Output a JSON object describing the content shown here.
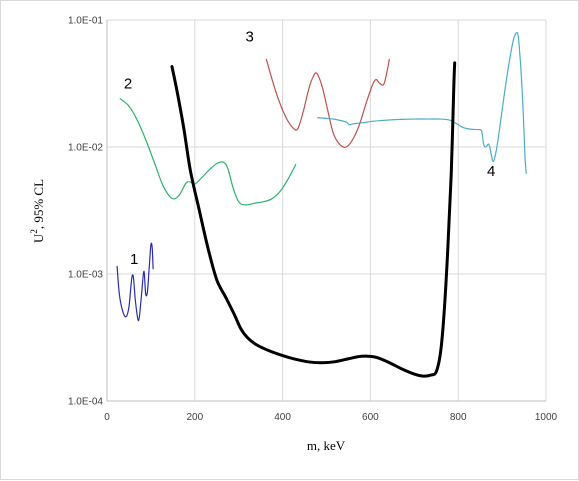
{
  "chart_data": {
    "type": "line",
    "title": "",
    "xlabel": "m, keV",
    "ylabel_main": "U",
    "ylabel_sup": "2",
    "ylabel_rest": ", 95% CL",
    "xlim": [
      0,
      1000
    ],
    "ylim": [
      0.0001,
      0.1
    ],
    "yscale": "log",
    "grid": true,
    "legend": "none",
    "x_ticks": [
      {
        "value": 0,
        "label": "0"
      },
      {
        "value": 200,
        "label": "200"
      },
      {
        "value": 400,
        "label": "400"
      },
      {
        "value": 600,
        "label": "600"
      },
      {
        "value": 800,
        "label": "800"
      },
      {
        "value": 1000,
        "label": "1000"
      }
    ],
    "y_ticks": [
      {
        "value": 0.0001,
        "label": "1.0E-04"
      },
      {
        "value": 0.001,
        "label": "1.0E-03"
      },
      {
        "value": 0.01,
        "label": "1.0E-02"
      },
      {
        "value": 0.1,
        "label": "1.0E-01"
      }
    ],
    "series": [
      {
        "label": "1",
        "color": "#2b2bb0",
        "width": 1.2,
        "label_at": [
          62,
          0.0012
        ],
        "points": [
          [
            23,
            0.00115
          ],
          [
            28,
            0.0007
          ],
          [
            35,
            0.00052
          ],
          [
            43,
            0.00046
          ],
          [
            50,
            0.00055
          ],
          [
            56,
            0.0009
          ],
          [
            60,
            0.00095
          ],
          [
            65,
            0.0006
          ],
          [
            72,
            0.00043
          ],
          [
            78,
            0.00065
          ],
          [
            84,
            0.00105
          ],
          [
            88,
            0.0007
          ],
          [
            92,
            0.00072
          ],
          [
            96,
            0.0011
          ],
          [
            100,
            0.0017
          ],
          [
            103,
            0.0016
          ],
          [
            105,
            0.0011
          ]
        ]
      },
      {
        "label": "2",
        "color": "#2db36b",
        "width": 1.2,
        "label_at": [
          48,
          0.029
        ],
        "points": [
          [
            30,
            0.024
          ],
          [
            50,
            0.021
          ],
          [
            70,
            0.016
          ],
          [
            90,
            0.011
          ],
          [
            110,
            0.0072
          ],
          [
            125,
            0.0052
          ],
          [
            140,
            0.0042
          ],
          [
            152,
            0.0039
          ],
          [
            165,
            0.0042
          ],
          [
            180,
            0.0052
          ],
          [
            190,
            0.0053
          ],
          [
            200,
            0.0051
          ],
          [
            215,
            0.0057
          ],
          [
            235,
            0.0067
          ],
          [
            250,
            0.0074
          ],
          [
            265,
            0.0076
          ],
          [
            275,
            0.0068
          ],
          [
            287,
            0.0048
          ],
          [
            300,
            0.0037
          ],
          [
            315,
            0.0035
          ],
          [
            335,
            0.0036
          ],
          [
            355,
            0.0037
          ],
          [
            375,
            0.0039
          ],
          [
            395,
            0.0045
          ],
          [
            415,
            0.0058
          ],
          [
            430,
            0.0073
          ]
        ]
      },
      {
        "label": "3",
        "color": "#c0504d",
        "width": 1.2,
        "label_at": [
          325,
          0.068
        ],
        "points": [
          [
            363,
            0.049
          ],
          [
            375,
            0.035
          ],
          [
            390,
            0.024
          ],
          [
            408,
            0.017
          ],
          [
            425,
            0.014
          ],
          [
            435,
            0.014
          ],
          [
            447,
            0.019
          ],
          [
            460,
            0.029
          ],
          [
            470,
            0.036
          ],
          [
            478,
            0.038
          ],
          [
            490,
            0.03
          ],
          [
            502,
            0.02
          ],
          [
            515,
            0.013
          ],
          [
            530,
            0.0105
          ],
          [
            545,
            0.01
          ],
          [
            560,
            0.0115
          ],
          [
            575,
            0.015
          ],
          [
            590,
            0.022
          ],
          [
            605,
            0.031
          ],
          [
            613,
            0.034
          ],
          [
            620,
            0.032
          ],
          [
            630,
            0.031
          ],
          [
            637,
            0.038
          ],
          [
            643,
            0.049
          ]
        ]
      },
      {
        "label": "4",
        "color": "#4bacc6",
        "width": 1.2,
        "label_at": [
          875,
          0.0059
        ],
        "points": [
          [
            480,
            0.017
          ],
          [
            500,
            0.0168
          ],
          [
            520,
            0.0165
          ],
          [
            545,
            0.0157
          ],
          [
            551,
            0.015
          ],
          [
            560,
            0.0152
          ],
          [
            580,
            0.0155
          ],
          [
            610,
            0.016
          ],
          [
            640,
            0.0163
          ],
          [
            670,
            0.0165
          ],
          [
            700,
            0.0166
          ],
          [
            730,
            0.0166
          ],
          [
            760,
            0.0166
          ],
          [
            780,
            0.0163
          ],
          [
            790,
            0.0157
          ],
          [
            800,
            0.015
          ],
          [
            812,
            0.0142
          ],
          [
            830,
            0.0138
          ],
          [
            845,
            0.0137
          ],
          [
            853,
            0.0134
          ],
          [
            858,
            0.0105
          ],
          [
            863,
            0.01
          ],
          [
            870,
            0.0105
          ],
          [
            875,
            0.0088
          ],
          [
            880,
            0.0077
          ],
          [
            887,
            0.0095
          ],
          [
            895,
            0.0145
          ],
          [
            905,
            0.026
          ],
          [
            915,
            0.044
          ],
          [
            925,
            0.068
          ],
          [
            932,
            0.079
          ],
          [
            937,
            0.073
          ],
          [
            943,
            0.04
          ],
          [
            948,
            0.019
          ],
          [
            952,
            0.0085
          ],
          [
            955,
            0.0062
          ]
        ]
      },
      {
        "label": "",
        "color": "#000000",
        "width": 3,
        "points": [
          [
            148,
            0.043
          ],
          [
            160,
            0.027
          ],
          [
            175,
            0.014
          ],
          [
            190,
            0.0065
          ],
          [
            210,
            0.0032
          ],
          [
            230,
            0.0016
          ],
          [
            250,
            0.0009
          ],
          [
            270,
            0.00066
          ],
          [
            290,
            0.00048
          ],
          [
            305,
            0.00037
          ],
          [
            320,
            0.000315
          ],
          [
            340,
            0.000278
          ],
          [
            370,
            0.000248
          ],
          [
            400,
            0.000228
          ],
          [
            430,
            0.000213
          ],
          [
            460,
            0.000203
          ],
          [
            490,
            0.0002
          ],
          [
            520,
            0.000204
          ],
          [
            550,
            0.000215
          ],
          [
            580,
            0.000225
          ],
          [
            610,
            0.000222
          ],
          [
            640,
            0.000203
          ],
          [
            670,
            0.00018
          ],
          [
            700,
            0.000163
          ],
          [
            720,
            0.000157
          ],
          [
            738,
            0.00016
          ],
          [
            750,
            0.00017
          ],
          [
            760,
            0.000245
          ],
          [
            768,
            0.0005
          ],
          [
            776,
            0.0015
          ],
          [
            784,
            0.006
          ],
          [
            790,
            0.03
          ],
          [
            792,
            0.046
          ]
        ]
      }
    ]
  }
}
